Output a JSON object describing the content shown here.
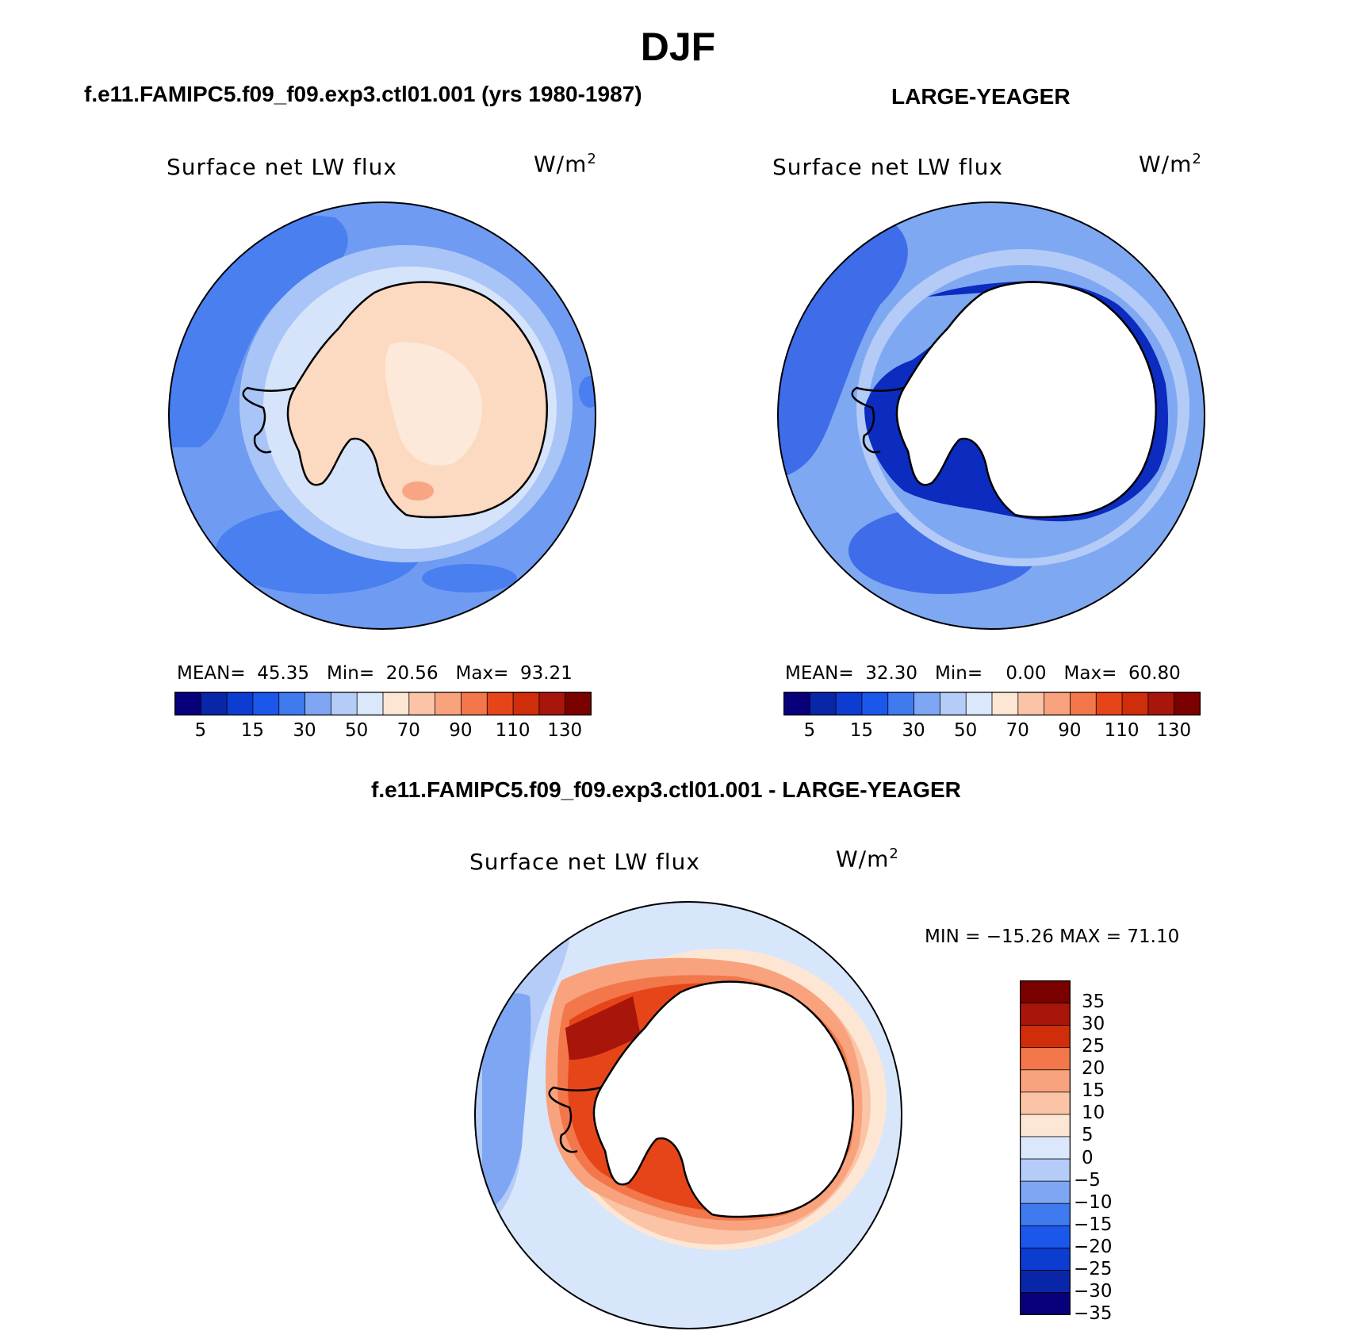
{
  "page": {
    "title": "DJF",
    "variable": "Surface net LW flux",
    "units": "W/m",
    "units_superscript": "2"
  },
  "panels": [
    {
      "title": "f.e11.FAMIPC5.f09_f09.exp3.ctl01.001 (yrs 1980-1987)",
      "stats": {
        "mean_label": "MEAN=",
        "mean": "45.35",
        "min_label": "Min=",
        "min": "20.56",
        "max_label": "Max=",
        "max": "93.21"
      }
    },
    {
      "title": "LARGE-YEAGER",
      "stats": {
        "mean_label": "MEAN=",
        "mean": "32.30",
        "min_label": "Min=",
        "min": "0.00",
        "max_label": "Max=",
        "max": "60.80"
      }
    },
    {
      "title": "f.e11.FAMIPC5.f09_f09.exp3.ctl01.001 - LARGE-YEAGER",
      "stats": {
        "text": "MIN = −15.26 MAX =  71.10"
      }
    }
  ],
  "colorbar_fields": {
    "colors": [
      "#08007b",
      "#0a26a8",
      "#0c3cd0",
      "#1c57ec",
      "#3f7aef",
      "#7ea6f2",
      "#b5cbf8",
      "#dbe8fb",
      "#fde7d4",
      "#fcc4a6",
      "#f8a37e",
      "#f2774a",
      "#e64519",
      "#d02d0a",
      "#a8150a",
      "#7b0000"
    ],
    "labels": [
      "5",
      "15",
      "30",
      "50",
      "70",
      "90",
      "110",
      "130"
    ]
  },
  "colorbar_difference": {
    "colors": [
      "#7b0000",
      "#a8150a",
      "#d02d0a",
      "#f2774a",
      "#f8a37e",
      "#fcc4a6",
      "#fde7d4",
      "#dbe8fb",
      "#b5cbf8",
      "#7ea6f2",
      "#3f7aef",
      "#1c57ec",
      "#0c3cd0",
      "#0a26a8",
      "#08007b"
    ],
    "labels": [
      "35",
      "30",
      "25",
      "20",
      "15",
      "10",
      "5",
      "0",
      "−5",
      "−10",
      "−15",
      "−20",
      "−25",
      "−30",
      "−35"
    ]
  },
  "map_colors": {
    "ocean_model": "#6f9cf2",
    "ocean_model_dark": "#4a7ff0",
    "ocean_model_light": "#a9c5f7",
    "ocean_model_paler": "#d6e4fb",
    "ice_model": "#fcd9c1",
    "ice_model_light": "#fde9da",
    "ice_model_orange": "#f7a582",
    "ocean_obs": "#7fa8f2",
    "ocean_obs_dark": "#3f6de9",
    "ocean_obs_deep": "#0c2cc0",
    "ocean_obs_light": "#b4cbf8",
    "land_obs": "#ffffff",
    "diff_base": "#d7e6fb",
    "diff_light": "#b5cbf8",
    "diff_blue": "#7ea6f2",
    "diff_pos1": "#fde7d4",
    "diff_pos2": "#fcc4a6",
    "diff_pos3": "#f8a37e",
    "diff_pos4": "#f2774a",
    "diff_pos5": "#e64519",
    "diff_pos6": "#a8150a"
  }
}
